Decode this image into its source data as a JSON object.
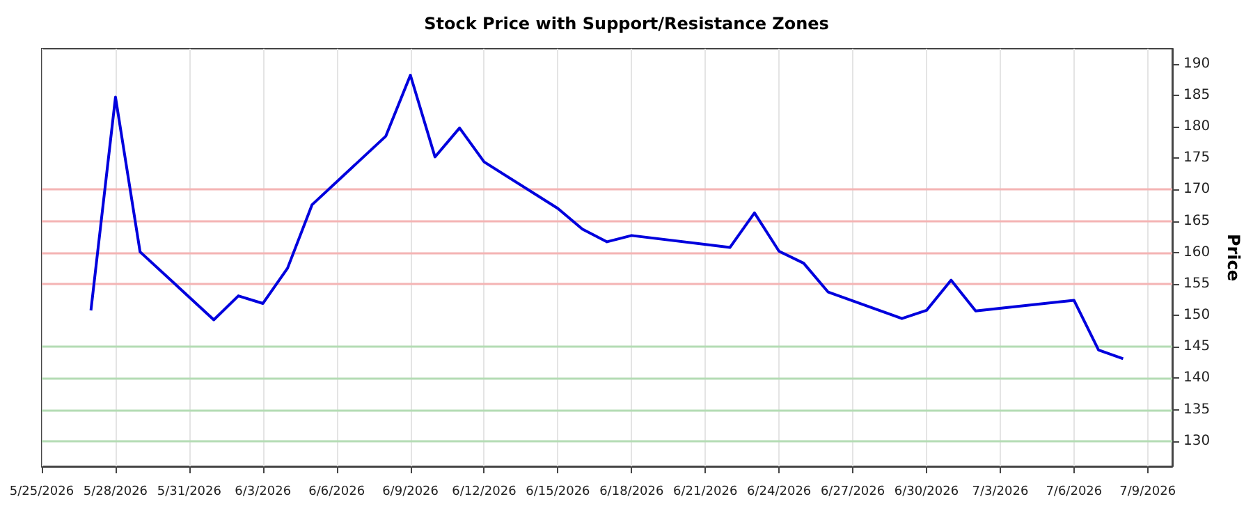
{
  "chart_data": {
    "type": "line",
    "title": "Stock Price with Support/Resistance Zones",
    "ylabel": "Price",
    "x": [
      "2026-05-27",
      "2026-05-28",
      "2026-05-29",
      "2026-06-01",
      "2026-06-02",
      "2026-06-03",
      "2026-06-04",
      "2026-06-05",
      "2026-06-08",
      "2026-06-09",
      "2026-06-10",
      "2026-06-11",
      "2026-06-12",
      "2026-06-15",
      "2026-06-16",
      "2026-06-17",
      "2026-06-18",
      "2026-06-22",
      "2026-06-23",
      "2026-06-24",
      "2026-06-25",
      "2026-06-26",
      "2026-06-29",
      "2026-06-30",
      "2026-07-01",
      "2026-07-02",
      "2026-07-06",
      "2026-07-07",
      "2026-07-08"
    ],
    "series": [
      {
        "color": "#0000dd",
        "values": [
          150.8,
          184.7,
          160.1,
          149.3,
          153.1,
          151.9,
          157.5,
          167.6,
          178.5,
          188.2,
          175.2,
          179.8,
          174.4,
          167.0,
          163.7,
          161.7,
          162.7,
          160.8,
          166.3,
          160.2,
          158.3,
          153.7,
          149.5,
          150.8,
          155.6,
          150.7,
          152.4,
          144.5,
          143.1
        ]
      }
    ],
    "xlim": [
      "2026-05-25",
      "2026-07-10"
    ],
    "xticks": [
      {
        "value": "2026-05-25",
        "label": "5/25/2026"
      },
      {
        "value": "2026-05-28",
        "label": "5/28/2026"
      },
      {
        "value": "2026-05-31",
        "label": "5/31/2026"
      },
      {
        "value": "2026-06-03",
        "label": "6/3/2026"
      },
      {
        "value": "2026-06-06",
        "label": "6/6/2026"
      },
      {
        "value": "2026-06-09",
        "label": "6/9/2026"
      },
      {
        "value": "2026-06-12",
        "label": "6/12/2026"
      },
      {
        "value": "2026-06-15",
        "label": "6/15/2026"
      },
      {
        "value": "2026-06-18",
        "label": "6/18/2026"
      },
      {
        "value": "2026-06-21",
        "label": "6/21/2026"
      },
      {
        "value": "2026-06-24",
        "label": "6/24/2026"
      },
      {
        "value": "2026-06-27",
        "label": "6/27/2026"
      },
      {
        "value": "2026-06-30",
        "label": "6/30/2026"
      },
      {
        "value": "2026-07-03",
        "label": "7/3/2026"
      },
      {
        "value": "2026-07-06",
        "label": "7/6/2026"
      },
      {
        "value": "2026-07-09",
        "label": "7/9/2026"
      }
    ],
    "ylim": [
      126,
      192.4
    ],
    "yticks": [
      130,
      135,
      140,
      145,
      150,
      155,
      160,
      165,
      170,
      175,
      180,
      185,
      190
    ],
    "ref_lines": [
      {
        "axis": "y",
        "value": 170,
        "color": "#f4b4b4"
      },
      {
        "axis": "y",
        "value": 165,
        "color": "#f4b4b4"
      },
      {
        "axis": "y",
        "value": 160,
        "color": "#f4b4b4"
      },
      {
        "axis": "y",
        "value": 155,
        "color": "#f4b4b4"
      },
      {
        "axis": "y",
        "value": 145,
        "color": "#b4dcb4"
      },
      {
        "axis": "y",
        "value": 140,
        "color": "#b4dcb4"
      },
      {
        "axis": "y",
        "value": 135,
        "color": "#b4dcb4"
      },
      {
        "axis": "y",
        "value": 130,
        "color": "#b4dcb4"
      }
    ],
    "grid": "x",
    "marker": "none",
    "line_style": "solid"
  }
}
